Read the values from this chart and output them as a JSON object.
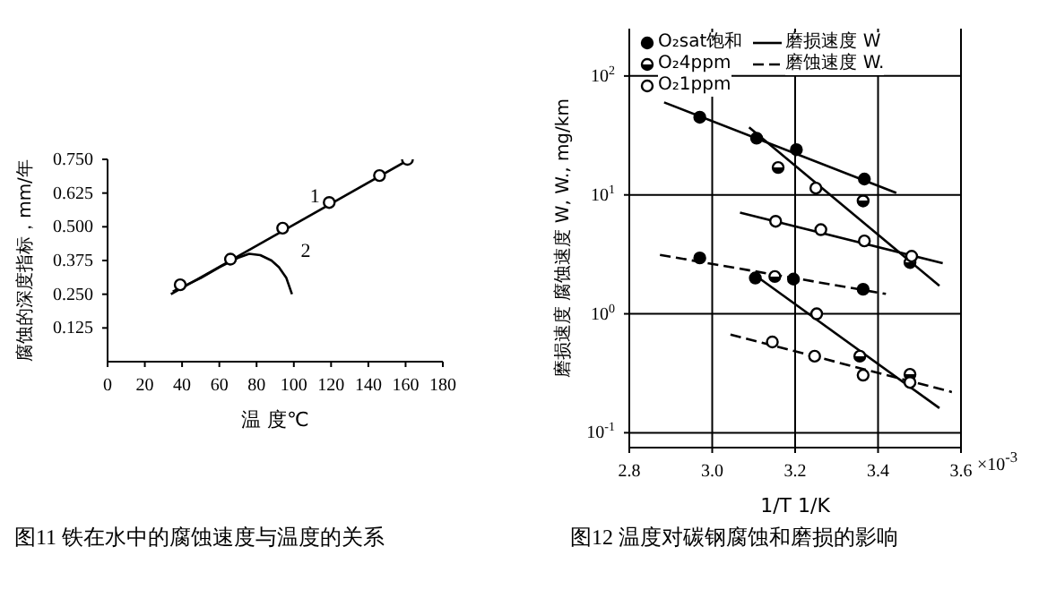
{
  "chart_data": [
    {
      "type": "line",
      "title": "图11 铁在水中的腐蚀速度与温度的关系",
      "xlabel": "温 度℃",
      "ylabel": "腐蚀的深度指标，mm/年",
      "xlim": [
        0,
        180
      ],
      "ylim": [
        0,
        0.75
      ],
      "xticks": [
        0,
        20,
        40,
        60,
        80,
        100,
        120,
        140,
        160,
        180
      ],
      "yticks": [
        {
          "value": 0.125,
          "label": "0.125"
        },
        {
          "value": 0.25,
          "label": "0.250"
        },
        {
          "value": 0.375,
          "label": "0.375"
        },
        {
          "value": 0.5,
          "label": "0.500"
        },
        {
          "value": 0.625,
          "label": "0.625"
        },
        {
          "value": 0.75,
          "label": "0.750"
        }
      ],
      "grid": false,
      "annotations": [
        {
          "text": "1",
          "x": 101,
          "y": 0.51
        },
        {
          "text": "2",
          "x": 96,
          "y": 0.31
        }
      ],
      "series": [
        {
          "type": "scatter",
          "marker": "circle",
          "color": "#000000",
          "x": [
            39,
            66,
            94,
            119,
            146,
            161
          ],
          "values": [
            0.285,
            0.38,
            0.495,
            0.59,
            0.69,
            0.75
          ]
        },
        {
          "color": "#000000",
          "marker": "none",
          "line_style": "solid",
          "x": [
            34,
            162
          ],
          "values": [
            0.25,
            0.75
          ]
        },
        {
          "color": "#000000",
          "marker": "none",
          "line_style": "solid",
          "x": [
            35,
            50,
            60,
            70,
            76,
            82,
            88,
            92,
            96,
            99
          ],
          "values": [
            0.26,
            0.31,
            0.35,
            0.385,
            0.4,
            0.395,
            0.375,
            0.35,
            0.31,
            0.25
          ]
        }
      ]
    },
    {
      "type": "scatter",
      "title": "图12 温度对碳钢腐蚀和磨损的影响",
      "xlabel": "1/T   1/K",
      "ylabel": "磨损速度  腐蚀速度 W, W., mg/km",
      "annotations": [
        "×10$^{-3}$"
      ],
      "xlim": [
        2.8,
        3.6
      ],
      "ylim": [
        0.075,
        250
      ],
      "log": "y",
      "xticks": [
        2.8,
        {
          "value": 3.0,
          "label": "3.0"
        },
        3.2,
        3.4,
        3.6
      ],
      "yticks": [
        {
          "value": 0.1,
          "label": "10$^{-1}$"
        },
        {
          "value": 1,
          "label": "10$^{0}$"
        },
        {
          "value": 10,
          "label": "10$^{1}$"
        },
        {
          "value": 100,
          "label": "10$^{2}$"
        }
      ],
      "grid": true,
      "legend": "top left",
      "marker": "circle",
      "series": [
        {
          "name": "O₂sat饱和",
          "color": "#000000",
          "x": [
            2.97,
            3.107,
            3.203,
            3.367,
            2.97,
            3.104,
            3.196,
            3.364
          ],
          "values": [
            45,
            30,
            24,
            13.6,
            2.95,
            2.0,
            1.96,
            1.61
          ]
        },
        {
          "name": "O₂4ppm",
          "color": "#000000",
          "x": [
            3.159,
            3.364,
            3.477,
            3.151,
            3.356,
            3.477
          ],
          "values": [
            17,
            8.9,
            2.7,
            2.06,
            0.44,
            0.31
          ]
        },
        {
          "name": "O₂1ppm",
          "color": "#000000",
          "x": [
            3.25,
            3.153,
            3.262,
            3.367,
            3.481,
            3.252,
            3.145,
            3.247,
            3.364,
            3.477
          ],
          "values": [
            11.4,
            6.0,
            5.1,
            4.1,
            3.05,
            1.0,
            0.58,
            0.44,
            0.305,
            0.265
          ]
        },
        {
          "type": "line",
          "marker": "none",
          "name": "磨损速度 W",
          "color": "#000000",
          "line_style": "solid",
          "x": [
            2.884,
            3.444
          ],
          "values": [
            60,
            10.4
          ]
        },
        {
          "type": "line",
          "marker": "none",
          "color": "#000000",
          "line_style": "solid",
          "x": [
            3.089,
            3.548
          ],
          "values": [
            37,
            1.72
          ]
        },
        {
          "type": "line",
          "marker": "none",
          "color": "#000000",
          "line_style": "solid",
          "x": [
            3.067,
            3.556
          ],
          "values": [
            7.1,
            2.66
          ]
        },
        {
          "type": "line",
          "marker": "none",
          "name": "磨蚀速度 W.",
          "color": "#000000",
          "line_style": "dashed",
          "x": [
            2.874,
            3.419
          ],
          "values": [
            3.13,
            1.47
          ]
        },
        {
          "type": "line",
          "marker": "none",
          "color": "#000000",
          "line_style": "solid",
          "x": [
            3.096,
            3.548
          ],
          "values": [
            2.2,
            0.161
          ]
        },
        {
          "type": "line",
          "marker": "none",
          "color": "#000000",
          "line_style": "dashed",
          "x": [
            3.044,
            3.578
          ],
          "values": [
            0.67,
            0.22
          ]
        }
      ]
    }
  ]
}
